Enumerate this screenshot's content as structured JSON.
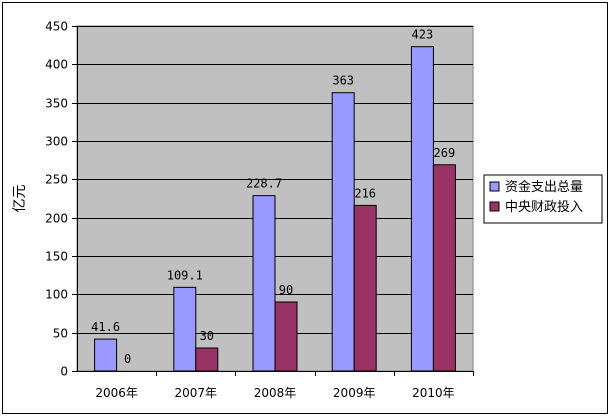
{
  "chart_data": {
    "type": "bar",
    "ylabel": "亿元",
    "categories": [
      "2006年",
      "2007年",
      "2008年",
      "2009年",
      "2010年"
    ],
    "ylim": [
      0,
      450
    ],
    "yticks": [
      0,
      50,
      100,
      150,
      200,
      250,
      300,
      350,
      400,
      450
    ],
    "grid": true,
    "legend_position": "right",
    "series": [
      {
        "name": "资金支出总量",
        "color": "#9999ff",
        "values": [
          41.6,
          109.1,
          228.7,
          363,
          423
        ],
        "labels": [
          "41.6",
          "109.1",
          "228.7",
          "363",
          "423"
        ]
      },
      {
        "name": "中央财政投入",
        "color": "#993366",
        "values": [
          0,
          30,
          90,
          216,
          269
        ],
        "labels": [
          "0",
          "30",
          "90",
          "216",
          "269"
        ]
      }
    ],
    "plot_background": "#c0c0c0"
  }
}
